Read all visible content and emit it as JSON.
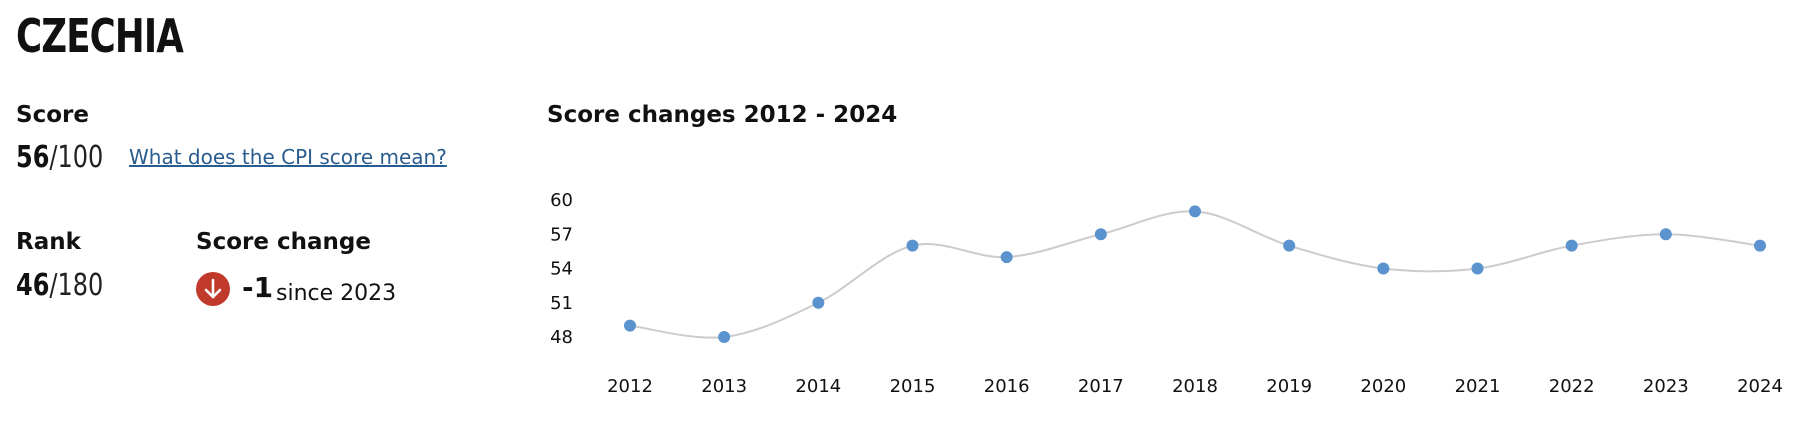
{
  "country": "CZECHIA",
  "score": {
    "label": "Score",
    "value": "56",
    "max": "/100",
    "link_text": "What does the CPI score mean?"
  },
  "rank": {
    "label": "Rank",
    "value": "46",
    "max": "/180"
  },
  "score_change": {
    "label": "Score change",
    "value": "-1",
    "since": "since 2023",
    "direction_icon": "arrow-down-icon",
    "icon_color": "#c0392b"
  },
  "colors": {
    "point": "#5b93cf",
    "line": "#cccccc",
    "link": "#2a5d8f"
  },
  "chart_data": {
    "type": "line",
    "title": "Score changes 2012 - 2024",
    "x": [
      "2012",
      "2013",
      "2014",
      "2015",
      "2016",
      "2017",
      "2018",
      "2019",
      "2020",
      "2021",
      "2022",
      "2023",
      "2024"
    ],
    "series": [
      {
        "values": [
          49,
          48,
          51,
          56,
          55,
          57,
          59,
          56,
          54,
          54,
          56,
          57,
          56
        ]
      }
    ],
    "yticks": [
      48,
      51,
      54,
      57,
      60
    ],
    "ylim": [
      48,
      60
    ],
    "xlabel": "",
    "ylabel": "",
    "grid": false,
    "legend": "none"
  }
}
